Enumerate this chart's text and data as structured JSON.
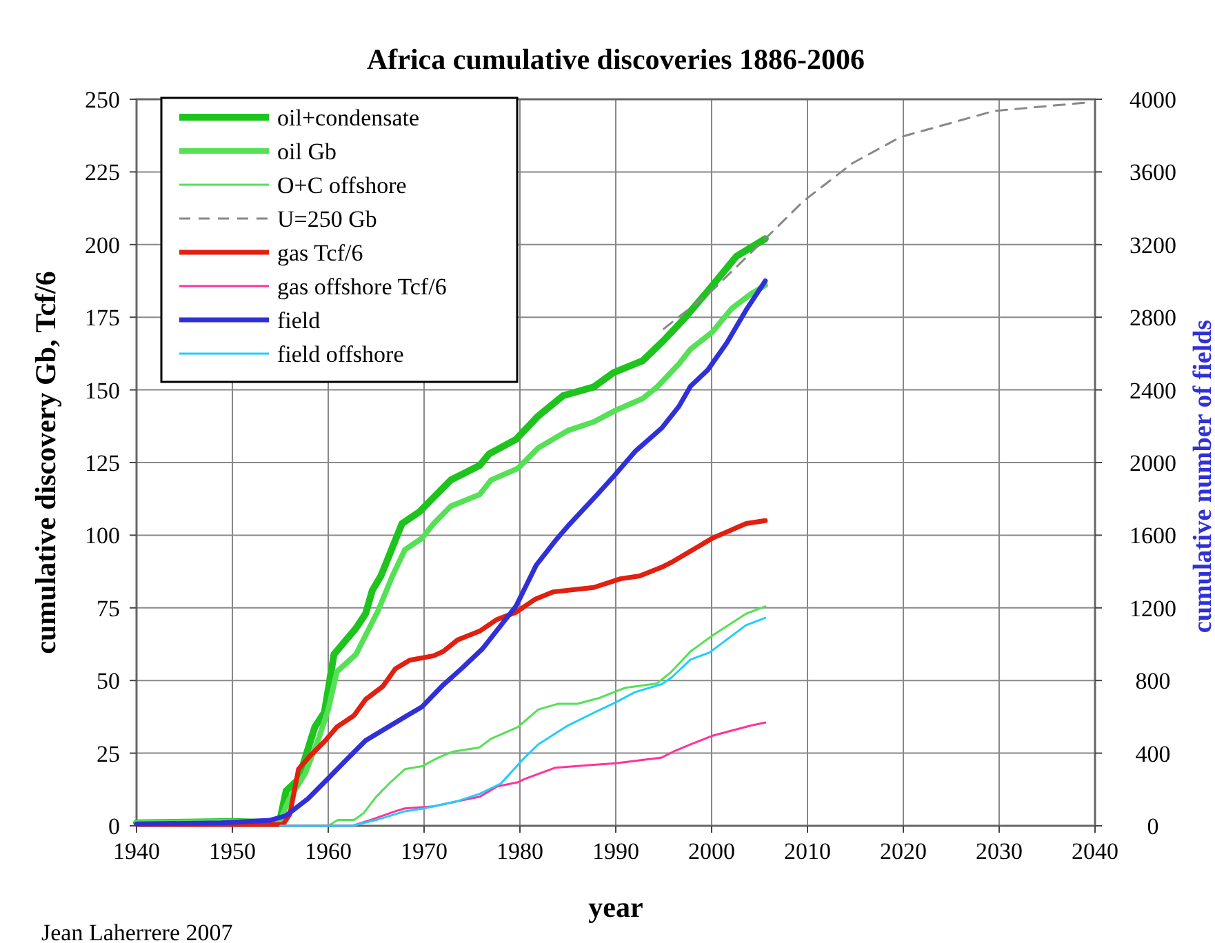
{
  "chart_data": {
    "type": "line",
    "title": "Africa cumulative discoveries 1886-2006",
    "xlabel": "year",
    "ylabel": "cumulative discovery Gb, Tcf/6",
    "y2label": "cumulative number of fields",
    "annotations": [
      "Jean Laherrere 2007"
    ],
    "xlim": [
      1940,
      2040
    ],
    "xticks": [
      1940,
      1950,
      1960,
      1970,
      1980,
      1990,
      2000,
      2010,
      2020,
      2030,
      2040
    ],
    "ylim": [
      0,
      250
    ],
    "yticks": [
      0,
      25,
      50,
      75,
      100,
      125,
      150,
      175,
      200,
      225,
      250
    ],
    "y2lim": [
      0,
      4000
    ],
    "y2ticks": [
      0,
      400,
      800,
      1200,
      1600,
      2000,
      2400,
      2800,
      3200,
      3600,
      4000
    ],
    "grid": true,
    "legend": "top left",
    "marker": "none",
    "series": [
      {
        "name": "oil+condensate",
        "color": "#1ec31e",
        "x": [
          1940,
          1950,
          1954.9,
          1955.6,
          1956.9,
          1958.6,
          1959.6,
          1960.6,
          1962.9,
          1963.9,
          1964.6,
          1965.5,
          1967.7,
          1969.5,
          1971,
          1972.8,
          1975.8,
          1976.8,
          1979.6,
          1981.9,
          1984.5,
          1987.7,
          1989.8,
          1992.8,
          1995,
          1997,
          1999.6,
          2002.6,
          2005.6
        ],
        "values": [
          1,
          1.5,
          1,
          12,
          16,
          34,
          39,
          59,
          68,
          73,
          81,
          86,
          104,
          108,
          113,
          119,
          124,
          128,
          133,
          141,
          148,
          151,
          156,
          160,
          167,
          174,
          184,
          196,
          202
        ]
      },
      {
        "name": "oil Gb",
        "color": "#55e055",
        "x": [
          1940,
          1950,
          1954.9,
          1955.9,
          1957.6,
          1959,
          1960,
          1960.9,
          1962.9,
          1965.2,
          1966.7,
          1968,
          1969.8,
          1971,
          1972.8,
          1975.8,
          1977,
          1979.8,
          1981.9,
          1985,
          1987.7,
          1990,
          1992.8,
          1994.3,
          1996.6,
          1997.8,
          2000.1,
          2002.1,
          2004.1,
          2005.6
        ],
        "values": [
          1,
          1.5,
          1,
          9,
          18,
          30,
          40,
          53,
          59,
          74,
          86,
          95,
          99,
          104,
          110,
          114,
          119,
          123,
          130,
          136,
          139,
          143,
          147,
          151,
          159,
          164,
          170,
          178,
          183,
          186
        ]
      },
      {
        "name": "O+C offshore",
        "color": "#55e055",
        "x": [
          1955,
          1960,
          1961,
          1962.7,
          1963.7,
          1965,
          1966.5,
          1968,
          1969.8,
          1971.5,
          1973,
          1975.8,
          1977,
          1979.8,
          1981.9,
          1984,
          1986,
          1988.3,
          1989.8,
          1991,
          1994.3,
          1995.8,
          1997.8,
          2000.1,
          2003.6,
          2005.6
        ],
        "values": [
          0,
          0,
          2,
          2,
          4.4,
          10,
          15,
          19.5,
          20.5,
          23.5,
          25.5,
          27,
          30,
          34,
          40,
          42,
          42,
          44,
          46,
          47.5,
          49,
          53,
          60,
          65.5,
          73,
          75.5
        ]
      },
      {
        "name": "U=250 Gb",
        "color": "#888888",
        "line_style": "dashed",
        "x": [
          1995,
          2000,
          2005.6,
          2009.6,
          2014.7,
          2019.7,
          2029.5,
          2039.6
        ],
        "values": [
          171,
          184,
          202,
          215,
          228,
          237,
          246,
          249
        ]
      },
      {
        "name": "gas Tcf/6",
        "color": "#e02010",
        "x": [
          1940,
          1950,
          1955.3,
          1956,
          1956.9,
          1958.1,
          1959.6,
          1960.9,
          1962.7,
          1963.9,
          1965.7,
          1967,
          1968.5,
          1971,
          1972,
          1973.5,
          1975.8,
          1977.6,
          1979.6,
          1981.6,
          1983.5,
          1987.7,
          1990.5,
          1992.5,
          1994.8,
          1996,
          2000.1,
          2003.6,
          2005.6
        ],
        "values": [
          0.5,
          0.5,
          0.5,
          4,
          19.5,
          24,
          29,
          34,
          38,
          43.5,
          48,
          54,
          57,
          58.5,
          60,
          64,
          67,
          71,
          73.5,
          78,
          80.5,
          82,
          85,
          86,
          89,
          91,
          99,
          104,
          105
        ]
      },
      {
        "name": "gas offshore Tcf/6",
        "color": "#ff3399",
        "x": [
          1955,
          1962.5,
          1964.4,
          1967,
          1968,
          1971,
          1973.5,
          1975.8,
          1977.6,
          1979.8,
          1980.4,
          1983.7,
          1987.7,
          1990,
          1994.8,
          1996,
          1997.8,
          2000.1,
          2004.1,
          2005.6
        ],
        "values": [
          0,
          0,
          2,
          5,
          6,
          6.7,
          8.5,
          10,
          13.5,
          15,
          16,
          20,
          21,
          21.5,
          23.5,
          25.5,
          28,
          31,
          34.5,
          35.5
        ]
      },
      {
        "name": "field",
        "color": "#3030d8",
        "axis": "y2",
        "x": [
          1940,
          1948.8,
          1953.9,
          1955.6,
          1957.9,
          1959.9,
          1961.9,
          1963.9,
          1968,
          1969.8,
          1972,
          1974,
          1976.1,
          1979.6,
          1981.7,
          1983.7,
          1985,
          1988,
          1989.8,
          1992,
          1994.8,
          1996.6,
          1997.8,
          1999.6,
          2001.6,
          2003.6,
          2005.6
        ],
        "values": [
          10,
          16,
          30,
          56,
          150,
          256,
          364,
          470,
          600,
          656,
          776,
          870,
          975,
          1210,
          1435,
          1570,
          1650,
          1820,
          1925,
          2060,
          2190,
          2310,
          2420,
          2510,
          2660,
          2840,
          3000
        ]
      },
      {
        "name": "field offshore",
        "color": "#22ccff",
        "axis": "y2",
        "x": [
          1955,
          1962.5,
          1965,
          1968,
          1970,
          1973.5,
          1975.8,
          1978,
          1980.4,
          1981.9,
          1985,
          1988,
          1990,
          1992,
          1994.8,
          1995.8,
          1997.8,
          1999.8,
          2002.2,
          2003.6,
          2005.6
        ],
        "values": [
          0,
          0,
          32,
          80,
          96,
          136,
          176,
          232,
          371,
          448,
          552,
          630,
          680,
          736,
          780,
          816,
          915,
          955,
          1050,
          1105,
          1145
        ]
      }
    ]
  }
}
